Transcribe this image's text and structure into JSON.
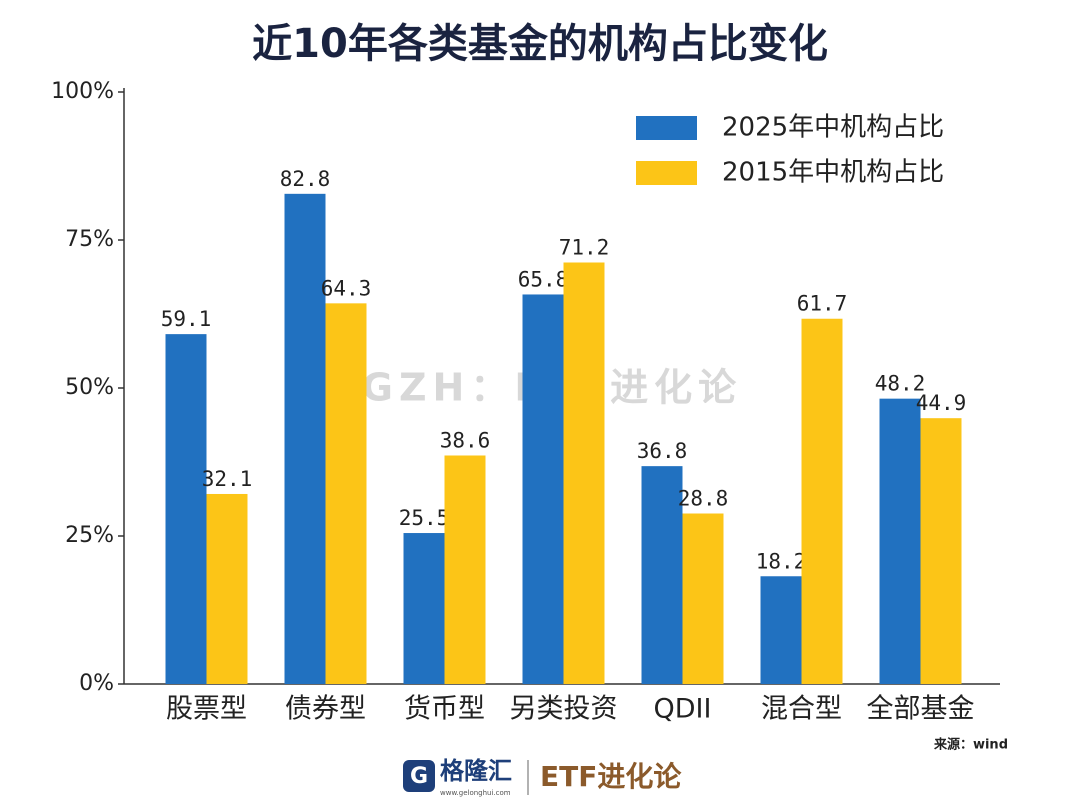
{
  "chart_data": {
    "type": "bar",
    "title": "近10年各类基金的机构占比变化",
    "categories": [
      "股票型",
      "债券型",
      "货币型",
      "另类投资",
      "QDII",
      "混合型",
      "全部基金"
    ],
    "series": [
      {
        "name": "2025年中机构占比",
        "color": "#2171c0",
        "values": [
          59.1,
          82.8,
          25.5,
          65.8,
          36.8,
          18.2,
          48.2
        ]
      },
      {
        "name": "2015年中机构占比",
        "color": "#fcc517",
        "values": [
          32.1,
          64.3,
          38.6,
          71.2,
          28.8,
          61.7,
          44.9
        ]
      }
    ],
    "ylim": [
      0,
      100
    ],
    "yticks": [
      {
        "value": 0,
        "label": "0%"
      },
      {
        "value": 25,
        "label": "25%"
      },
      {
        "value": 50,
        "label": "50%"
      },
      {
        "value": 75,
        "label": "75%"
      },
      {
        "value": 100,
        "label": "100%"
      }
    ],
    "legend": "upper right",
    "grid": false
  },
  "watermark": "GZH：ETF进化论",
  "source": "来源：wind",
  "footer": {
    "logo": "格隆汇",
    "url": "www.gelonghui.com",
    "brand": "ETF进化论"
  }
}
